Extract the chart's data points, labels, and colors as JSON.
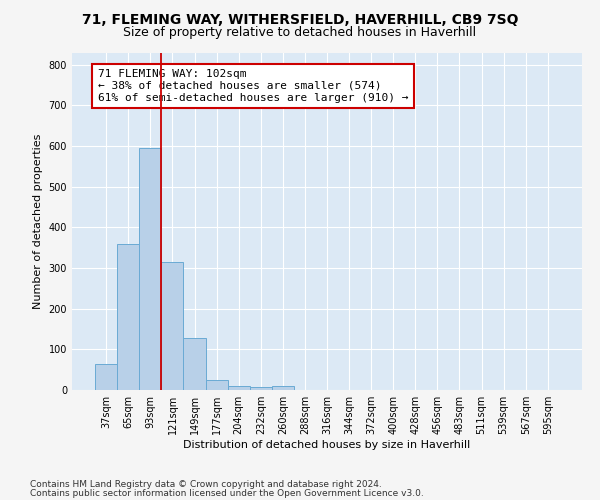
{
  "title_line1": "71, FLEMING WAY, WITHERSFIELD, HAVERHILL, CB9 7SQ",
  "title_line2": "Size of property relative to detached houses in Haverhill",
  "xlabel": "Distribution of detached houses by size in Haverhill",
  "ylabel": "Number of detached properties",
  "categories": [
    "37sqm",
    "65sqm",
    "93sqm",
    "121sqm",
    "149sqm",
    "177sqm",
    "204sqm",
    "232sqm",
    "260sqm",
    "288sqm",
    "316sqm",
    "344sqm",
    "372sqm",
    "400sqm",
    "428sqm",
    "456sqm",
    "483sqm",
    "511sqm",
    "539sqm",
    "567sqm",
    "595sqm"
  ],
  "values": [
    65,
    358,
    595,
    315,
    128,
    25,
    10,
    8,
    10,
    0,
    0,
    0,
    0,
    0,
    0,
    0,
    0,
    0,
    0,
    0,
    0
  ],
  "bar_color": "#b8d0e8",
  "bar_edge_color": "#6aaad4",
  "vline_color": "#cc0000",
  "annotation_text": "71 FLEMING WAY: 102sqm\n← 38% of detached houses are smaller (574)\n61% of semi-detached houses are larger (910) →",
  "annotation_box_color": "#ffffff",
  "annotation_box_edge": "#cc0000",
  "ylim": [
    0,
    830
  ],
  "yticks": [
    0,
    100,
    200,
    300,
    400,
    500,
    600,
    700,
    800
  ],
  "footnote1": "Contains HM Land Registry data © Crown copyright and database right 2024.",
  "footnote2": "Contains public sector information licensed under the Open Government Licence v3.0.",
  "plot_bg_color": "#dce9f5",
  "fig_bg_color": "#f5f5f5",
  "grid_color": "#ffffff",
  "title_fontsize": 10,
  "subtitle_fontsize": 9,
  "axis_label_fontsize": 8,
  "tick_fontsize": 7,
  "annotation_fontsize": 8,
  "footnote_fontsize": 6.5
}
